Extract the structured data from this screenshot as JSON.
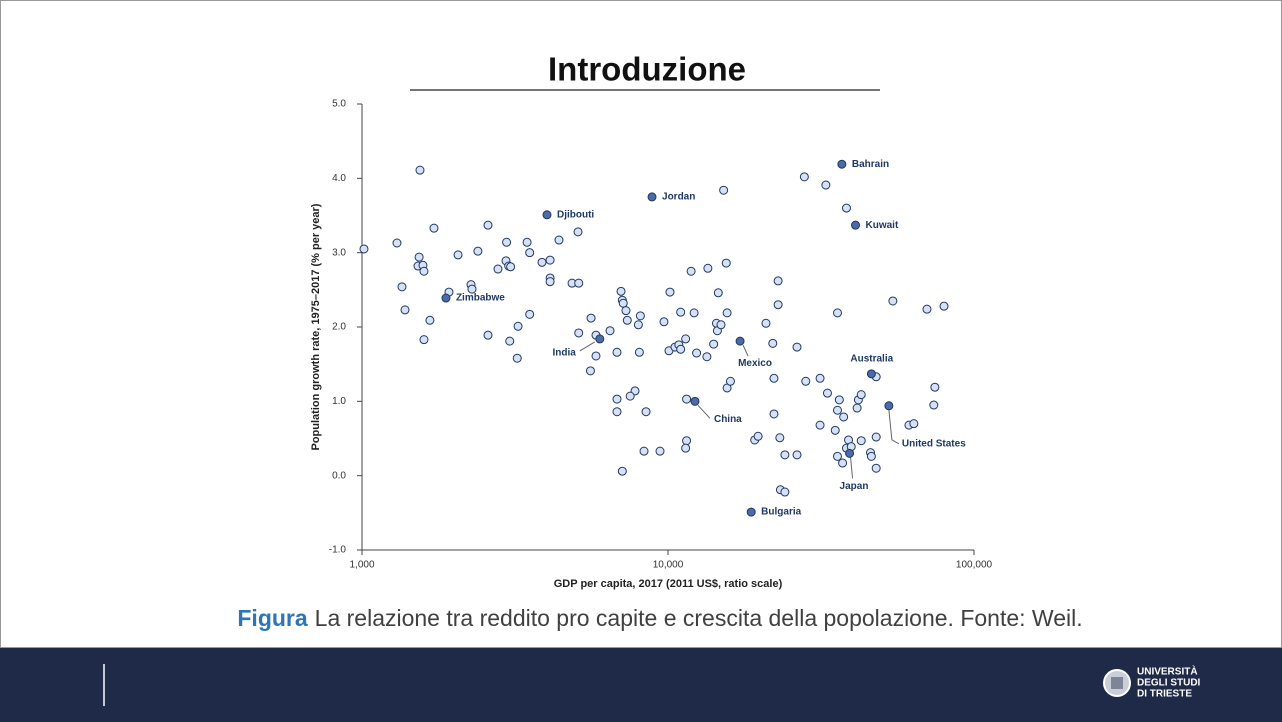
{
  "slide_title": "Introduzione",
  "caption_label": "Figura",
  "caption_text": "La relazione tra reddito pro capite e crescita della popolazione. Fonte: Weil.",
  "logo": [
    "UNIVERSITÀ",
    "DEGLI STUDI",
    "DI TRIESTE"
  ],
  "chart_data": {
    "type": "scatter",
    "x_label": "GDP per capita, 2017 (2011 US$, ratio scale)",
    "y_label": "Population growth rate, 1975–2017 (% per year)",
    "x_log": true,
    "xlim": [
      1000,
      100000
    ],
    "xticks": [
      {
        "value": 1000,
        "label": "1,000"
      },
      {
        "value": 10000,
        "label": "10,000"
      },
      {
        "value": 100000,
        "label": "100,000"
      }
    ],
    "ylim": [
      -1,
      5
    ],
    "yticks": [
      {
        "value": -1,
        "label": "-1.0"
      },
      {
        "value": 0,
        "label": "0.0"
      },
      {
        "value": 1,
        "label": "1.0"
      },
      {
        "value": 2,
        "label": "2.0"
      },
      {
        "value": 3,
        "label": "3.0"
      },
      {
        "value": 4,
        "label": "4.0"
      },
      {
        "value": 5,
        "label": "5.0"
      }
    ],
    "series": [
      {
        "color": "#d6e2f4",
        "x": [
          1015,
          1301,
          1351,
          1382,
          1547,
          1537,
          1524,
          1582,
          1594,
          1594,
          1667,
          1719,
          1924,
          2060,
          2271,
          2288,
          2392,
          2581,
          2581,
          2782,
          2955,
          2968,
          3016,
          3060,
          3040,
          3236,
          3216,
          3463,
          3532,
          3532,
          3874,
          4118,
          4118,
          4118,
          4403,
          4858,
          5081,
          5108,
          5108,
          5604,
          5580,
          5817,
          5817,
          6465,
          6813,
          6813,
          6813,
          7022,
          7092,
          7140,
          7092,
          7288,
          7362,
          7803,
          7523,
          8002,
          8123,
          8063,
          8349,
          8476,
          9417,
          9702,
          10075,
          10150,
          10540,
          10850,
          11000,
          11000,
          11420,
          11500,
          11500,
          11420,
          11900,
          12170,
          12400,
          13500,
          13400,
          14100,
          14400,
          14500,
          14600,
          14900,
          15200,
          15500,
          15600,
          15600,
          16000,
          19200,
          19700,
          20900,
          22000,
          22200,
          22200,
          22900,
          22900,
          23200,
          23300,
          24100,
          24100,
          26400,
          26400,
          27900,
          28200,
          31400,
          31400,
          32800,
          33200,
          35200,
          35800,
          35800,
          36300,
          35800,
          37500,
          37200,
          38300,
          38900,
          38300,
          39700,
          41500,
          41900,
          42800,
          42800,
          47900,
          45900,
          46200,
          47900,
          47900,
          54300,
          61300,
          63600,
          70200,
          73900,
          74500,
          79800
        ],
        "values": [
          3.05,
          3.13,
          2.54,
          2.23,
          4.11,
          2.94,
          2.82,
          2.83,
          2.75,
          1.83,
          2.09,
          3.33,
          2.47,
          2.97,
          2.57,
          2.51,
          3.02,
          3.37,
          1.89,
          2.78,
          2.89,
          3.14,
          2.82,
          2.81,
          1.81,
          2.01,
          1.58,
          3.14,
          3.0,
          2.17,
          2.87,
          2.9,
          2.66,
          2.61,
          3.17,
          2.59,
          3.28,
          2.59,
          1.92,
          2.12,
          1.41,
          1.89,
          1.61,
          1.95,
          1.03,
          0.86,
          1.66,
          2.48,
          2.36,
          2.32,
          0.06,
          2.22,
          2.09,
          1.14,
          1.07,
          2.03,
          2.15,
          1.66,
          0.33,
          0.86,
          0.33,
          2.07,
          1.68,
          2.47,
          1.73,
          1.76,
          1.7,
          2.2,
          1.84,
          1.03,
          0.47,
          0.37,
          2.75,
          2.19,
          1.65,
          2.79,
          1.6,
          1.77,
          2.05,
          1.95,
          2.46,
          2.03,
          3.84,
          2.86,
          2.19,
          1.18,
          1.27,
          0.48,
          0.53,
          2.05,
          1.78,
          1.31,
          0.83,
          2.62,
          2.3,
          0.51,
          -0.19,
          -0.22,
          0.28,
          1.73,
          0.28,
          4.02,
          1.27,
          0.68,
          1.31,
          3.91,
          1.11,
          0.61,
          2.19,
          0.88,
          1.02,
          0.26,
          0.79,
          0.17,
          3.6,
          0.48,
          0.37,
          0.39,
          0.91,
          1.02,
          1.09,
          0.47,
          1.33,
          0.31,
          0.26,
          0.52,
          0.1,
          2.35,
          0.68,
          0.7,
          2.24,
          0.95,
          1.19,
          2.28
        ]
      },
      {
        "color": "#4a6aa8",
        "x": [
          1881,
          4023,
          8867,
          5986,
          12250,
          17200,
          18700,
          37000,
          41000,
          46200,
          39200,
          52700
        ],
        "values": [
          2.39,
          3.51,
          3.75,
          1.84,
          1.0,
          1.81,
          -0.49,
          4.19,
          3.37,
          1.37,
          0.3,
          0.94
        ],
        "labels": [
          "Zimbabwe",
          "Djibouti",
          "Jordan",
          "India",
          "China",
          "Mexico",
          "Bulgaria",
          "Bahrain",
          "Kuwait",
          "Australia",
          "Japan",
          "United States"
        ]
      }
    ]
  }
}
